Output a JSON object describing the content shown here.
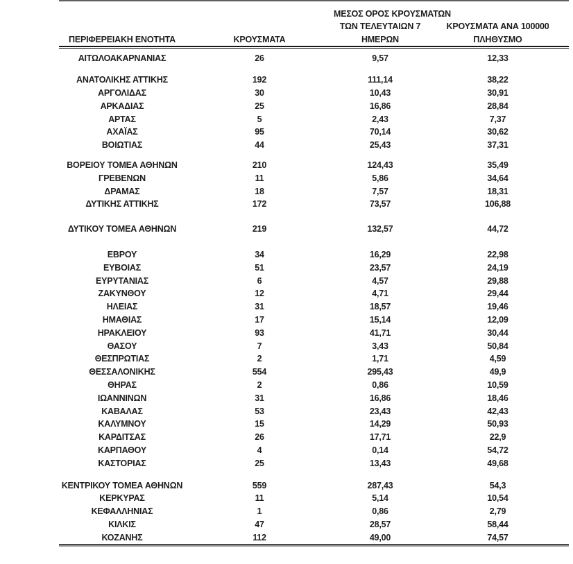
{
  "table": {
    "header": {
      "col1": "ΠΕΡΙΦΕΡΕΙΑΚΗ ΕΝΟΤΗΤΑ",
      "col2": "ΚΡΟΥΣΜΑΤΑ",
      "col3_line1": "ΜΕΣΟΣ ΟΡΟΣ ΚΡΟΥΣΜΑΤΩΝ",
      "col3_line2": "ΤΩΝ ΤΕΛΕΥΤΑΙΩΝ 7",
      "col3_line3": "ΗΜΕΡΩΝ",
      "col4_line1": "ΚΡΟΥΣΜΑΤΑ ΑΝΑ 100000",
      "col4_line2": "ΠΛΗΘΥΣΜΟ"
    },
    "groups": [
      {
        "rows": [
          {
            "region": "ΑΙΤΩΛΟΑΚΑΡΝΑΝΙΑΣ",
            "cases": "26",
            "avg7": "9,57",
            "per100k": "12,33"
          }
        ]
      },
      {
        "rows": [
          {
            "region": "ΑΝΑΤΟΛΙΚΗΣ ΑΤΤΙΚΗΣ",
            "cases": "192",
            "avg7": "111,14",
            "per100k": "38,22"
          },
          {
            "region": "ΑΡΓΟΛΙΔΑΣ",
            "cases": "30",
            "avg7": "10,43",
            "per100k": "30,91"
          },
          {
            "region": "ΑΡΚΑΔΙΑΣ",
            "cases": "25",
            "avg7": "16,86",
            "per100k": "28,84"
          },
          {
            "region": "ΑΡΤΑΣ",
            "cases": "5",
            "avg7": "2,43",
            "per100k": "7,37"
          },
          {
            "region": "ΑΧΑΪΑΣ",
            "cases": "95",
            "avg7": "70,14",
            "per100k": "30,62"
          },
          {
            "region": "ΒΟΙΩΤΙΑΣ",
            "cases": "44",
            "avg7": "25,43",
            "per100k": "37,31"
          }
        ]
      },
      {
        "rows": [
          {
            "region": "ΒΟΡΕΙΟΥ ΤΟΜΕΑ ΑΘΗΝΩΝ",
            "cases": "210",
            "avg7": "124,43",
            "per100k": "35,49"
          },
          {
            "region": "ΓΡΕΒΕΝΩΝ",
            "cases": "11",
            "avg7": "5,86",
            "per100k": "34,64"
          },
          {
            "region": "ΔΡΑΜΑΣ",
            "cases": "18",
            "avg7": "7,57",
            "per100k": "18,31"
          },
          {
            "region": "ΔΥΤΙΚΗΣ ΑΤΤΙΚΗΣ",
            "cases": "172",
            "avg7": "73,57",
            "per100k": "106,88"
          }
        ]
      },
      {
        "rows": [
          {
            "region": "ΔΥΤΙΚΟΥ ΤΟΜΕΑ ΑΘΗΝΩΝ",
            "cases": "219",
            "avg7": "132,57",
            "per100k": "44,72"
          }
        ]
      },
      {
        "rows": [
          {
            "region": "ΕΒΡΟΥ",
            "cases": "34",
            "avg7": "16,29",
            "per100k": "22,98"
          },
          {
            "region": "ΕΥΒΟΙΑΣ",
            "cases": "51",
            "avg7": "23,57",
            "per100k": "24,19"
          },
          {
            "region": "ΕΥΡΥΤΑΝΙΑΣ",
            "cases": "6",
            "avg7": "4,57",
            "per100k": "29,88"
          },
          {
            "region": "ΖΑΚΥΝΘΟΥ",
            "cases": "12",
            "avg7": "4,71",
            "per100k": "29,44"
          },
          {
            "region": "ΗΛΕΙΑΣ",
            "cases": "31",
            "avg7": "18,57",
            "per100k": "19,46"
          },
          {
            "region": "ΗΜΑΘΙΑΣ",
            "cases": "17",
            "avg7": "15,14",
            "per100k": "12,09"
          },
          {
            "region": "ΗΡΑΚΛΕΙΟΥ",
            "cases": "93",
            "avg7": "41,71",
            "per100k": "30,44"
          },
          {
            "region": "ΘΑΣΟΥ",
            "cases": "7",
            "avg7": "3,43",
            "per100k": "50,84"
          },
          {
            "region": "ΘΕΣΠΡΩΤΙΑΣ",
            "cases": "2",
            "avg7": "1,71",
            "per100k": "4,59"
          },
          {
            "region": "ΘΕΣΣΑΛΟΝΙΚΗΣ",
            "cases": "554",
            "avg7": "295,43",
            "per100k": "49,9"
          },
          {
            "region": "ΘΗΡΑΣ",
            "cases": "2",
            "avg7": "0,86",
            "per100k": "10,59"
          },
          {
            "region": "ΙΩΑΝΝΙΝΩΝ",
            "cases": "31",
            "avg7": "16,86",
            "per100k": "18,46"
          },
          {
            "region": "ΚΑΒΑΛΑΣ",
            "cases": "53",
            "avg7": "23,43",
            "per100k": "42,43"
          },
          {
            "region": "ΚΑΛΥΜΝΟΥ",
            "cases": "15",
            "avg7": "14,29",
            "per100k": "50,93"
          },
          {
            "region": "ΚΑΡΔΙΤΣΑΣ",
            "cases": "26",
            "avg7": "17,71",
            "per100k": "22,9"
          },
          {
            "region": "ΚΑΡΠΑΘΟΥ",
            "cases": "4",
            "avg7": "0,14",
            "per100k": "54,72"
          },
          {
            "region": "ΚΑΣΤΟΡΙΑΣ",
            "cases": "25",
            "avg7": "13,43",
            "per100k": "49,68"
          }
        ]
      },
      {
        "rows": [
          {
            "region": "ΚΕΝΤΡΙΚΟΥ ΤΟΜΕΑ ΑΘΗΝΩΝ",
            "cases": "559",
            "avg7": "287,43",
            "per100k": "54,3"
          },
          {
            "region": "ΚΕΡΚΥΡΑΣ",
            "cases": "11",
            "avg7": "5,14",
            "per100k": "10,54"
          },
          {
            "region": "ΚΕΦΑΛΛΗΝΙΑΣ",
            "cases": "1",
            "avg7": "0,86",
            "per100k": "2,79"
          },
          {
            "region": "ΚΙΛΚΙΣ",
            "cases": "47",
            "avg7": "28,57",
            "per100k": "58,44"
          },
          {
            "region": "ΚΟΖΑΝΗΣ",
            "cases": "112",
            "avg7": "49,00",
            "per100k": "74,57"
          }
        ]
      }
    ],
    "colors": {
      "text": "#1e1e1e",
      "header_rule": "#161616",
      "top_rule": "#5f5f5f",
      "bottom_rule": "#474747"
    }
  }
}
